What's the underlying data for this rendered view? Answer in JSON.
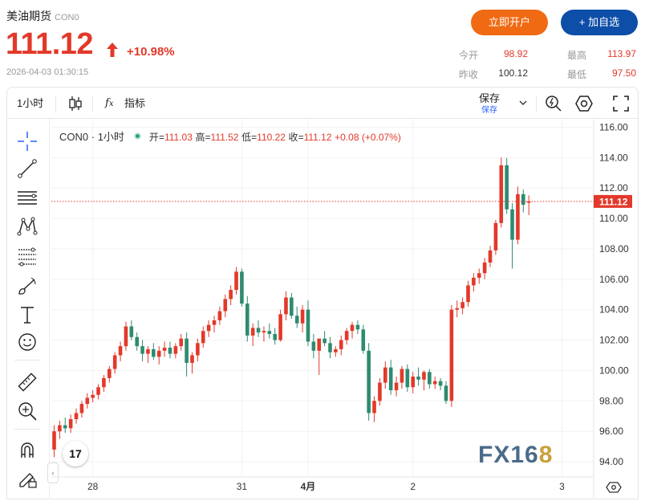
{
  "header": {
    "name": "美油期货",
    "code": "CON0",
    "price": "111.12",
    "change_pct": "+10.98%",
    "timestamp": "2026-04-03 01:30:15",
    "open_account_label": "立即开户",
    "watchlist_label": "+ 加自选"
  },
  "quote": {
    "open_label": "今开",
    "open": "98.92",
    "high_label": "最高",
    "high": "113.97",
    "prev_close_label": "昨收",
    "prev_close": "100.12",
    "low_label": "最低",
    "low": "97.50"
  },
  "toolbar": {
    "interval": "1小时",
    "indicators_label": "指标",
    "save_label": "保存",
    "save_sub": "保存"
  },
  "legend": {
    "symbol": "CON0",
    "interval": "1小时",
    "open_label": "开",
    "open": "111.03",
    "high_label": "高",
    "high": "111.52",
    "low_label": "低",
    "low": "110.22",
    "close_label": "收",
    "close": "111.12",
    "change": "+0.08 (+0.07%)"
  },
  "watermark": {
    "main": "FX16",
    "accent": "8"
  },
  "tv_logo": "17",
  "colors": {
    "up": "#e2392a",
    "down": "#2e8b70",
    "price_line": "#e2392a",
    "primary": "#0d4ea8",
    "accent": "#f06a14"
  },
  "chart_data": {
    "type": "candlestick",
    "ylim": [
      93,
      116.5
    ],
    "yticks": [
      94,
      96,
      98,
      100,
      102,
      104,
      106,
      108,
      110,
      112,
      114,
      116
    ],
    "ytick_labels": [
      "94.00",
      "96.00",
      "98.00",
      "100.00",
      "102.00",
      "104.00",
      "106.00",
      "108.00",
      "110.00",
      "112.00",
      "114.00",
      "116.00"
    ],
    "xticks": [
      {
        "i": 7,
        "label": "28"
      },
      {
        "i": 34,
        "label": "31"
      },
      {
        "i": 46,
        "label": "4月"
      },
      {
        "i": 65,
        "label": "2"
      },
      {
        "i": 92,
        "label": "3"
      }
    ],
    "last_price": 111.12,
    "last_price_label": "111.12",
    "candles": [
      [
        94.8,
        96.4,
        94.3,
        96.0
      ],
      [
        96.0,
        96.7,
        95.5,
        96.4
      ],
      [
        96.4,
        96.9,
        95.9,
        96.2
      ],
      [
        96.2,
        97.1,
        95.9,
        96.8
      ],
      [
        96.8,
        97.5,
        96.5,
        97.2
      ],
      [
        97.2,
        98.0,
        96.9,
        97.8
      ],
      [
        97.8,
        98.5,
        97.5,
        98.2
      ],
      [
        98.2,
        98.7,
        97.9,
        98.4
      ],
      [
        98.4,
        99.1,
        98.1,
        98.9
      ],
      [
        98.9,
        99.7,
        98.6,
        99.5
      ],
      [
        99.5,
        100.3,
        99.2,
        100.1
      ],
      [
        100.1,
        101.2,
        99.8,
        101.0
      ],
      [
        101.0,
        101.9,
        100.6,
        101.6
      ],
      [
        101.6,
        103.2,
        101.3,
        102.9
      ],
      [
        102.9,
        103.3,
        102.0,
        102.2
      ],
      [
        102.2,
        102.5,
        101.3,
        101.6
      ],
      [
        101.6,
        102.0,
        100.6,
        101.1
      ],
      [
        101.1,
        101.6,
        100.5,
        101.4
      ],
      [
        101.4,
        101.8,
        100.7,
        100.9
      ],
      [
        100.9,
        101.6,
        100.4,
        101.3
      ],
      [
        101.3,
        101.9,
        100.9,
        101.5
      ],
      [
        101.5,
        101.9,
        100.8,
        101.1
      ],
      [
        101.1,
        101.8,
        100.8,
        101.6
      ],
      [
        101.6,
        102.4,
        101.3,
        102.1
      ],
      [
        102.1,
        102.5,
        99.6,
        100.5
      ],
      [
        100.5,
        101.2,
        99.8,
        101.0
      ],
      [
        101.0,
        102.1,
        100.6,
        101.8
      ],
      [
        101.8,
        102.9,
        101.5,
        102.6
      ],
      [
        102.6,
        103.3,
        102.2,
        103.0
      ],
      [
        103.0,
        103.6,
        102.5,
        103.3
      ],
      [
        103.3,
        104.2,
        103.0,
        103.9
      ],
      [
        103.9,
        105.0,
        103.5,
        104.7
      ],
      [
        104.7,
        105.6,
        104.3,
        105.3
      ],
      [
        105.3,
        106.8,
        105.0,
        106.5
      ],
      [
        106.5,
        106.7,
        104.2,
        104.4
      ],
      [
        104.4,
        104.9,
        101.9,
        102.3
      ],
      [
        102.3,
        103.1,
        101.6,
        102.8
      ],
      [
        102.8,
        103.3,
        102.2,
        102.5
      ],
      [
        102.5,
        102.9,
        101.9,
        102.6
      ],
      [
        102.6,
        103.1,
        102.1,
        102.4
      ],
      [
        102.4,
        102.8,
        101.7,
        102.0
      ],
      [
        102.0,
        104.0,
        101.9,
        103.7
      ],
      [
        103.7,
        105.2,
        103.3,
        104.8
      ],
      [
        104.8,
        105.1,
        103.4,
        103.6
      ],
      [
        103.6,
        104.2,
        102.8,
        103.1
      ],
      [
        103.1,
        104.3,
        102.5,
        104.0
      ],
      [
        104.0,
        104.6,
        101.6,
        101.9
      ],
      [
        101.9,
        102.4,
        100.8,
        101.3
      ],
      [
        101.3,
        102.0,
        99.7,
        102.1
      ],
      [
        102.1,
        102.6,
        101.6,
        101.8
      ],
      [
        101.8,
        102.2,
        100.8,
        101.2
      ],
      [
        101.2,
        101.6,
        100.9,
        101.4
      ],
      [
        101.4,
        102.3,
        101.0,
        102.0
      ],
      [
        102.0,
        102.8,
        101.7,
        102.6
      ],
      [
        102.6,
        103.2,
        102.1,
        103.0
      ],
      [
        103.0,
        103.3,
        102.4,
        102.7
      ],
      [
        102.7,
        103.0,
        101.1,
        101.3
      ],
      [
        101.3,
        101.8,
        96.7,
        97.2
      ],
      [
        97.2,
        98.3,
        96.6,
        98.0
      ],
      [
        98.0,
        99.5,
        97.7,
        99.2
      ],
      [
        99.2,
        100.6,
        98.8,
        100.2
      ],
      [
        100.2,
        100.7,
        98.4,
        98.7
      ],
      [
        98.7,
        99.6,
        98.3,
        99.2
      ],
      [
        99.2,
        100.3,
        98.8,
        100.1
      ],
      [
        100.1,
        100.4,
        98.6,
        98.9
      ],
      [
        98.9,
        99.9,
        98.5,
        99.6
      ],
      [
        99.6,
        100.2,
        99.0,
        99.4
      ],
      [
        99.4,
        100.0,
        98.7,
        99.9
      ],
      [
        99.9,
        100.1,
        98.8,
        99.1
      ],
      [
        99.1,
        99.6,
        98.8,
        99.3
      ],
      [
        99.3,
        99.5,
        98.7,
        99.0
      ],
      [
        99.0,
        99.3,
        97.8,
        98.0
      ],
      [
        98.0,
        104.3,
        97.6,
        104.0
      ],
      [
        104.0,
        104.6,
        103.5,
        104.1
      ],
      [
        104.1,
        104.8,
        103.7,
        104.5
      ],
      [
        104.5,
        105.9,
        104.2,
        105.6
      ],
      [
        105.6,
        106.4,
        105.2,
        106.1
      ],
      [
        106.1,
        106.7,
        105.7,
        106.4
      ],
      [
        106.4,
        107.4,
        106.0,
        107.1
      ],
      [
        107.1,
        108.2,
        106.8,
        107.9
      ],
      [
        107.9,
        109.9,
        107.6,
        109.7
      ],
      [
        109.7,
        114.0,
        109.4,
        113.5
      ],
      [
        113.5,
        113.97,
        110.3,
        110.6
      ],
      [
        110.6,
        111.0,
        106.7,
        108.6
      ],
      [
        108.6,
        112.1,
        108.3,
        111.6
      ],
      [
        111.6,
        111.9,
        110.4,
        110.9
      ],
      [
        111.03,
        111.52,
        110.22,
        111.12
      ]
    ]
  }
}
